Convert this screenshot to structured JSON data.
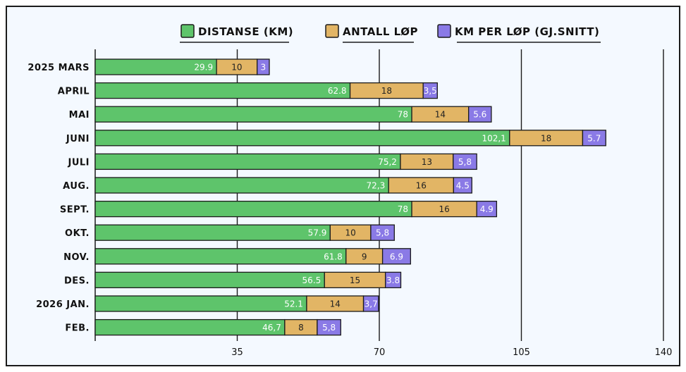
{
  "chart_data": {
    "type": "bar",
    "orientation": "horizontal",
    "stacked": true,
    "title": "",
    "xlabel": "",
    "ylabel": "",
    "xlim": [
      0,
      140
    ],
    "xticks": [
      35,
      70,
      105,
      140
    ],
    "grid": "vertical",
    "legend_position": "top",
    "categories": [
      "2025 MARS",
      "APRIL",
      "MAI",
      "JUNI",
      "JULI",
      "AUG.",
      "SEPT.",
      "OKT.",
      "NOV.",
      "DES.",
      "2026 JAN.",
      "FEB."
    ],
    "series": [
      {
        "name": "DISTANSE (KM)",
        "color": "#5ec46b",
        "values": [
          29.9,
          62.8,
          78,
          102.1,
          75.2,
          72.3,
          78,
          57.9,
          61.8,
          56.5,
          52.1,
          46.7
        ],
        "labels": [
          "29.9",
          "62.8",
          "78",
          "102,1",
          "75,2",
          "72,3",
          "78",
          "57.9",
          "61.8",
          "56.5",
          "52.1",
          "46,7"
        ]
      },
      {
        "name": "ANTALL LØP",
        "color": "#e2b565",
        "values": [
          10,
          18,
          14,
          18,
          13,
          16,
          16,
          10,
          9,
          15,
          14,
          8
        ],
        "labels": [
          "10",
          "18",
          "14",
          "18",
          "13",
          "16",
          "16",
          "10",
          "9",
          "15",
          "14",
          "8"
        ]
      },
      {
        "name": "KM PER LØP (GJ.SNITT)",
        "color": "#8a7ae6",
        "values": [
          3,
          3.5,
          5.6,
          5.7,
          5.8,
          4.5,
          4.9,
          5.8,
          6.9,
          3.8,
          3.7,
          5.8
        ],
        "labels": [
          "3",
          "3,5",
          "5.6",
          "5.7",
          "5,8",
          "4.5",
          "4.9",
          "5,8",
          "6.9",
          "3.8",
          "3,7",
          "5,8"
        ]
      }
    ]
  }
}
